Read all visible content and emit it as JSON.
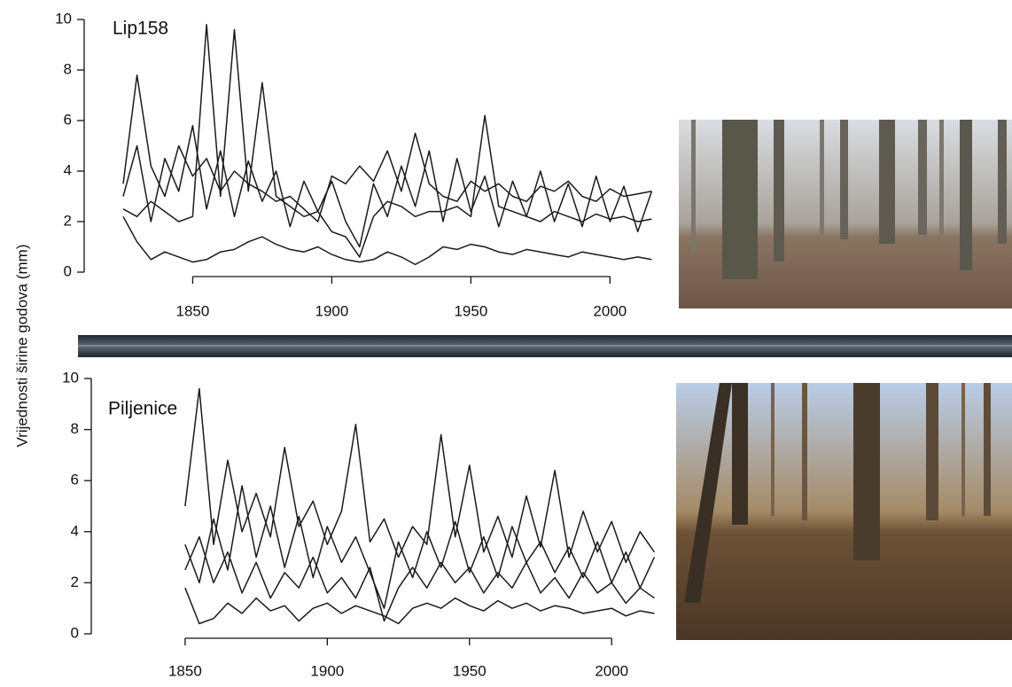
{
  "chart_data": [
    {
      "type": "line",
      "title": "Lip158",
      "ylabel": "Vrijednosti širine godova (mm)",
      "x": [
        1825,
        1830,
        1835,
        1840,
        1845,
        1850,
        1855,
        1860,
        1865,
        1870,
        1875,
        1880,
        1885,
        1890,
        1895,
        1900,
        1905,
        1910,
        1915,
        1920,
        1925,
        1930,
        1935,
        1940,
        1945,
        1950,
        1955,
        1960,
        1965,
        1970,
        1975,
        1980,
        1985,
        1990,
        1995,
        2000,
        2005,
        2010,
        2015
      ],
      "series": [
        {
          "color": "#1a1a1a",
          "values": [
            3.5,
            7.8,
            4.2,
            3,
            5,
            3.8,
            4.5,
            3.2,
            4,
            3.5,
            3.2,
            2.8,
            3,
            2.5,
            2,
            3.8,
            3.5,
            4.2,
            3.6,
            4.8,
            3.2,
            5.5,
            3.5,
            3,
            2.8,
            3.6,
            3.2,
            3.5,
            3,
            2.8,
            3.4,
            3.2,
            3.6,
            3,
            2.8,
            3.3,
            3,
            3.1,
            3.2
          ]
        },
        {
          "color": "#1a1a1a",
          "values": [
            2.5,
            2.2,
            2.8,
            2.4,
            2,
            2.2,
            9.8,
            3,
            9.6,
            3.2,
            7.5,
            3,
            2.6,
            2.2,
            2.4,
            1.6,
            1.4,
            0.6,
            2.2,
            2.8,
            2.6,
            2.2,
            2.4,
            2.4,
            2.6,
            2.2,
            6.2,
            2.6,
            2.4,
            2.2,
            2,
            2.4,
            2.2,
            2,
            2.3,
            2.1,
            2.2,
            2,
            2.1
          ]
        },
        {
          "color": "#1a1a1a",
          "values": [
            2.2,
            1.2,
            0.5,
            0.8,
            0.6,
            0.4,
            0.5,
            0.8,
            0.9,
            1.2,
            1.4,
            1.1,
            0.9,
            0.8,
            1,
            0.7,
            0.5,
            0.4,
            0.5,
            0.8,
            0.6,
            0.3,
            0.6,
            1,
            0.9,
            1.1,
            1,
            0.8,
            0.7,
            0.9,
            0.8,
            0.7,
            0.6,
            0.8,
            0.7,
            0.6,
            0.5,
            0.6,
            0.5
          ]
        },
        {
          "color": "#1a1a1a",
          "values": [
            3,
            5,
            2,
            4.5,
            3.2,
            5.8,
            2.5,
            4.8,
            2.2,
            4.4,
            2.8,
            4,
            1.8,
            3.6,
            2.4,
            3.6,
            2,
            1,
            3.5,
            2.2,
            4.2,
            2.6,
            4.8,
            2,
            4.5,
            2.4,
            3.8,
            1.8,
            3.6,
            2.2,
            4,
            2,
            3.5,
            1.8,
            3.8,
            2,
            3.4,
            1.6,
            3.2
          ]
        }
      ],
      "xlim": [
        1811,
        2019
      ],
      "xticks": [
        1850,
        1900,
        1950,
        2000
      ],
      "ylim": [
        0,
        10
      ],
      "yticks": [
        0,
        2,
        4,
        6,
        8,
        10
      ]
    },
    {
      "type": "line",
      "title": "Piljenice",
      "x": [
        1850,
        1855,
        1860,
        1865,
        1870,
        1875,
        1880,
        1885,
        1890,
        1895,
        1900,
        1905,
        1910,
        1915,
        1920,
        1925,
        1930,
        1935,
        1940,
        1945,
        1950,
        1955,
        1960,
        1965,
        1970,
        1975,
        1980,
        1985,
        1990,
        1995,
        2000,
        2005,
        2010,
        2015
      ],
      "series": [
        {
          "color": "#1a1a1a",
          "values": [
            5,
            9.6,
            3.5,
            6.8,
            4,
            5.5,
            3.8,
            7.3,
            4.2,
            5.2,
            3.5,
            4.8,
            8.2,
            3.6,
            4.5,
            3,
            4.2,
            3.5,
            7.8,
            3.8,
            6.6,
            3.2,
            4.6,
            3,
            5.4,
            3.4,
            6.4,
            3,
            4.8,
            3.2,
            4.4,
            2.8,
            4,
            3.2
          ]
        },
        {
          "color": "#1a1a1a",
          "values": [
            1.8,
            0.4,
            0.6,
            1.2,
            0.8,
            1.4,
            0.9,
            1.1,
            0.5,
            1,
            1.2,
            0.8,
            1.1,
            0.9,
            0.7,
            0.4,
            1,
            1.2,
            1,
            1.4,
            1.1,
            0.9,
            1.3,
            1,
            1.2,
            0.9,
            1.1,
            1,
            0.8,
            0.9,
            1,
            0.7,
            0.9,
            0.8
          ]
        },
        {
          "color": "#1a1a1a",
          "values": [
            3.5,
            2,
            4.5,
            2.5,
            5.8,
            3,
            5,
            2.6,
            4.6,
            2.2,
            4.2,
            2.8,
            3.8,
            2.4,
            1,
            3.6,
            2.2,
            4,
            2.6,
            4.4,
            2.4,
            3.8,
            2.2,
            4.2,
            2.8,
            3.6,
            2.4,
            3.4,
            2.2,
            3.6,
            2,
            3.2,
            1.8,
            3
          ]
        },
        {
          "color": "#1a1a1a",
          "values": [
            2.5,
            3.8,
            2,
            3.2,
            1.6,
            2.8,
            1.4,
            2.4,
            1.8,
            3,
            1.6,
            2.2,
            1.4,
            2.6,
            0.5,
            1.8,
            2.6,
            1.8,
            2.8,
            2,
            2.6,
            1.6,
            2.4,
            1.8,
            2.8,
            1.6,
            2.2,
            1.4,
            2.4,
            1.6,
            2,
            1.2,
            1.8,
            1.4
          ]
        }
      ],
      "xlim": [
        1817,
        2018
      ],
      "xticks": [
        1850,
        1900,
        1950,
        2000
      ],
      "ylim": [
        0,
        10
      ],
      "yticks": [
        0,
        2,
        4,
        6,
        8,
        10
      ]
    }
  ]
}
